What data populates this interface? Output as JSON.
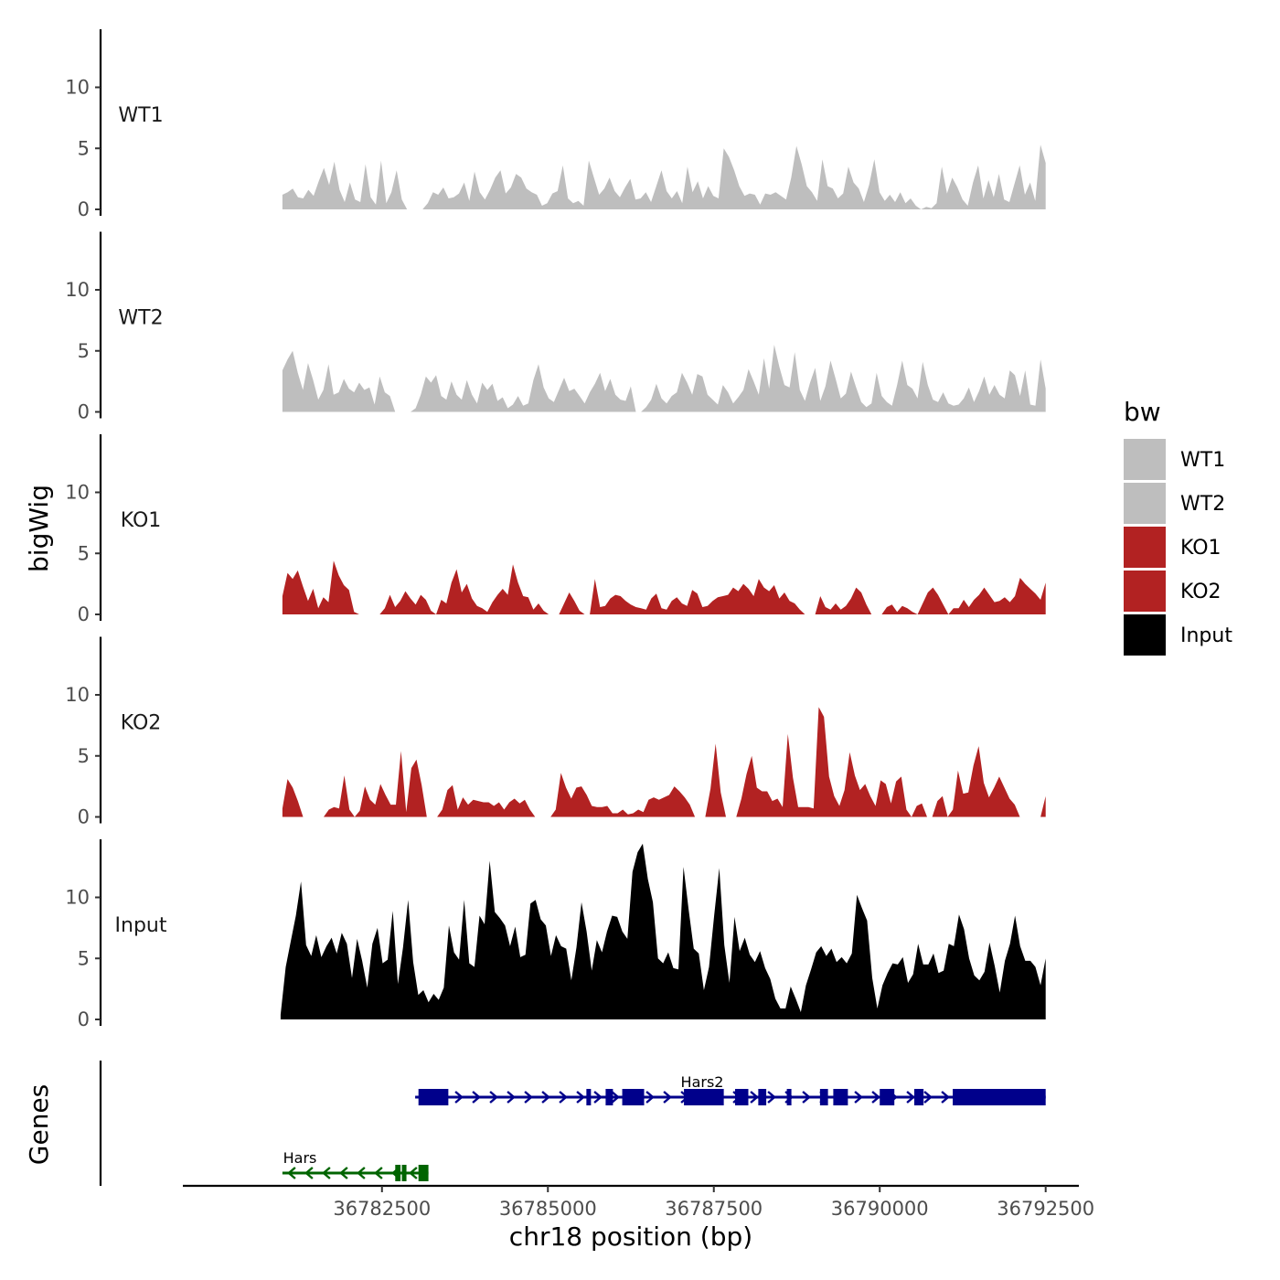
{
  "chart_data": {
    "type": "area",
    "ylabel": "bigWig",
    "xlabel": "chr18 position (bp)",
    "genes_label": "Genes",
    "ylim": [
      0,
      15
    ],
    "yticks": [
      0,
      5,
      10
    ],
    "xlim": [
      36779500,
      36793000
    ],
    "xticks": [
      36782500,
      36785000,
      36787500,
      36790000,
      36792500
    ],
    "x_start": 36781000,
    "x_end": 36792500,
    "legend": {
      "title": "bw",
      "entries": [
        {
          "label": "WT1",
          "color": "#bebebe"
        },
        {
          "label": "WT2",
          "color": "#bebebe"
        },
        {
          "label": "KO1",
          "color": "#b22222"
        },
        {
          "label": "KO2",
          "color": "#b22222"
        },
        {
          "label": "Input",
          "color": "#000000"
        }
      ]
    },
    "tracks": [
      {
        "name": "WT1",
        "color": "#bebebe",
        "values": [
          1.2,
          1.4,
          1.7,
          1.0,
          0.9,
          1.6,
          1.1,
          2.3,
          3.4,
          2.0,
          3.9,
          1.6,
          0.6,
          2.2,
          0.8,
          0.6,
          3.7,
          1.0,
          0.4,
          4.0,
          0.5,
          1.4,
          3.2,
          0.8,
          0,
          0,
          0,
          0,
          0.5,
          1.4,
          1.2,
          1.8,
          0.9,
          1.0,
          1.3,
          2.2,
          0.7,
          3.1,
          1.4,
          0.8,
          1.6,
          2.6,
          3.2,
          1.3,
          1.8,
          2.9,
          2.6,
          1.7,
          1.4,
          1.2,
          0.3,
          0.5,
          1.3,
          1.5,
          3.6,
          0.9,
          0.5,
          0.7,
          0.3,
          4.0,
          2.6,
          1.2,
          1.7,
          2.6,
          1.5,
          1.0,
          1.8,
          2.5,
          0.8,
          0.9,
          1.4,
          0.6,
          1.9,
          3.2,
          1.5,
          0.9,
          1.5,
          0.5,
          3.5,
          1.4,
          2.3,
          0.9,
          1.9,
          1.1,
          0.9,
          5.0,
          4.3,
          3.2,
          1.9,
          1.1,
          1.3,
          1.2,
          0.4,
          1.3,
          1.2,
          1.4,
          1.1,
          0.8,
          2.6,
          5.2,
          3.7,
          1.9,
          1.4,
          0.7,
          4.1,
          1.9,
          1.7,
          0.9,
          1.3,
          3.5,
          2.2,
          1.7,
          0.6,
          2.0,
          4.1,
          1.4,
          0.7,
          1.2,
          0.6,
          1.4,
          0.5,
          0.9,
          0.3,
          0,
          0.2,
          0.1,
          0.5,
          3.5,
          1.3,
          2.6,
          1.8,
          0.8,
          0.3,
          2.2,
          3.6,
          0.9,
          2.4,
          1.0,
          2.9,
          0.8,
          0.6,
          2.1,
          3.6,
          1.2,
          2.2,
          0.7,
          5.3,
          3.8
        ]
      },
      {
        "name": "WT2",
        "color": "#bebebe",
        "values": [
          3.4,
          4.3,
          5.0,
          3.2,
          1.8,
          4.0,
          2.6,
          1.0,
          1.8,
          3.9,
          1.4,
          1.6,
          2.7,
          1.9,
          1.6,
          2.4,
          1.8,
          2.0,
          0.6,
          2.9,
          1.6,
          1.3,
          0,
          0,
          0,
          0,
          0.3,
          1.4,
          2.9,
          2.4,
          3.0,
          1.3,
          1.0,
          2.5,
          1.4,
          1.0,
          2.6,
          1.4,
          0.7,
          2.4,
          1.8,
          2.3,
          0.9,
          1.2,
          0.3,
          0.6,
          1.3,
          0.5,
          0.7,
          2.6,
          3.9,
          2.0,
          1.1,
          0.8,
          1.8,
          2.8,
          1.7,
          1.9,
          1.3,
          0.7,
          1.6,
          2.3,
          3.2,
          1.7,
          2.7,
          1.4,
          1.0,
          0.9,
          2.1,
          0,
          0,
          0.4,
          1.0,
          2.3,
          1.1,
          0.7,
          1.3,
          1.6,
          3.2,
          2.4,
          1.4,
          3.1,
          2.9,
          1.4,
          1.0,
          0.6,
          2.2,
          1.6,
          0.7,
          1.2,
          1.8,
          3.5,
          2.5,
          1.4,
          4.4,
          1.9,
          5.5,
          3.7,
          2.2,
          2.0,
          4.9,
          1.8,
          0.9,
          2.4,
          3.6,
          0.9,
          2.1,
          4.2,
          2.7,
          1.1,
          1.5,
          3.3,
          2.0,
          0.8,
          0.4,
          0.7,
          3.2,
          1.3,
          0.8,
          0.5,
          2.2,
          4.2,
          2.2,
          1.9,
          1.1,
          4.1,
          2.2,
          1.0,
          0.8,
          1.6,
          0.7,
          0.5,
          0.6,
          1.1,
          2.0,
          0.8,
          1.7,
          2.9,
          1.4,
          2.2,
          1.4,
          1.1,
          3.4,
          3.0,
          1.3,
          3.4,
          0.6,
          0.5,
          4.3,
          1.9
        ]
      },
      {
        "name": "KO1",
        "color": "#b22222",
        "values": [
          1.5,
          3.4,
          2.9,
          3.6,
          2.3,
          1.1,
          2.1,
          0.5,
          1.4,
          1.0,
          4.4,
          3.2,
          2.4,
          2.0,
          0.2,
          0,
          0,
          0,
          0,
          0,
          0.5,
          1.6,
          0.6,
          1.1,
          1.9,
          1.3,
          0.8,
          1.6,
          1.2,
          0.3,
          0,
          1.2,
          0.9,
          2.6,
          3.7,
          1.8,
          2.5,
          1.3,
          0.7,
          0.5,
          0.2,
          1.0,
          1.6,
          2.1,
          1.6,
          4.1,
          2.6,
          1.5,
          1.4,
          0.4,
          0.9,
          0.3,
          0,
          0,
          0,
          0.9,
          1.8,
          1.1,
          0.3,
          0,
          0,
          2.9,
          0.6,
          0.7,
          1.3,
          1.6,
          1.5,
          1.1,
          0.8,
          0.6,
          0.5,
          0.4,
          1.3,
          1.7,
          0.5,
          0.4,
          1.1,
          1.4,
          0.9,
          0.7,
          2.0,
          1.7,
          0.6,
          0.7,
          1.1,
          1.4,
          1.5,
          1.6,
          2.2,
          1.9,
          2.5,
          2.1,
          1.5,
          2.9,
          2.2,
          1.9,
          2.4,
          1.3,
          1.8,
          1.1,
          0.9,
          0.4,
          0,
          0,
          0,
          1.5,
          0.6,
          0.4,
          0.9,
          0.4,
          0.7,
          1.3,
          2.2,
          1.8,
          0.8,
          0,
          0,
          0,
          0.6,
          0.8,
          0.2,
          0.7,
          0.5,
          0.2,
          0,
          0.9,
          1.8,
          2.2,
          1.6,
          0.8,
          0,
          0.5,
          0.5,
          1.2,
          0.6,
          1.2,
          1.6,
          2.2,
          1.6,
          1.0,
          1.1,
          1.4,
          1.0,
          1.5,
          3.0,
          2.5,
          2.1,
          1.7,
          1.2,
          2.6
        ]
      },
      {
        "name": "KO2",
        "color": "#b22222",
        "values": [
          0.7,
          3.1,
          2.4,
          1.3,
          0,
          0,
          0,
          0,
          0,
          0.6,
          0.8,
          0.7,
          3.4,
          0.6,
          0,
          0.5,
          2.5,
          1.4,
          1.0,
          2.7,
          1.8,
          1.0,
          1.0,
          5.4,
          0.4,
          4.0,
          4.7,
          2.6,
          0,
          0,
          0,
          0.6,
          2.2,
          2.6,
          0.6,
          1.6,
          1.0,
          1.4,
          1.3,
          1.2,
          1.2,
          0.9,
          1.2,
          0.6,
          1.2,
          1.5,
          1.1,
          1.4,
          0.6,
          0,
          0,
          0,
          0,
          0.6,
          3.6,
          2.4,
          1.5,
          2.4,
          2.5,
          1.8,
          0.9,
          0.8,
          0.8,
          0.9,
          0.3,
          0.3,
          0.6,
          0.2,
          0.3,
          0.6,
          0.4,
          1.4,
          1.6,
          1.4,
          1.6,
          1.8,
          2.5,
          2.1,
          1.6,
          1.0,
          0,
          0,
          0,
          2.3,
          6.0,
          2.0,
          0,
          0,
          0,
          1.5,
          3.5,
          5.0,
          2.4,
          2.1,
          2.1,
          1.3,
          1.5,
          0.8,
          6.8,
          3.2,
          0.8,
          0.8,
          0.8,
          0.7,
          9.0,
          8.2,
          3.3,
          1.7,
          0.9,
          2.2,
          5.3,
          3.4,
          2.2,
          2.7,
          1.7,
          0.9,
          3.0,
          2.7,
          1.1,
          2.9,
          3.3,
          0.6,
          0,
          0.9,
          1.1,
          0,
          0,
          1.3,
          1.7,
          0,
          0.6,
          3.8,
          1.9,
          2.0,
          4.2,
          5.8,
          2.8,
          1.6,
          2.4,
          3.3,
          2.4,
          1.5,
          1.0,
          0,
          0,
          0,
          0,
          0,
          1.7
        ]
      },
      {
        "name": "Input",
        "color": "#000000",
        "values": [
          0.4,
          4.3,
          6.4,
          8.5,
          11.3,
          6.1,
          5.2,
          6.9,
          5.1,
          6.0,
          6.7,
          5.4,
          7.1,
          6.2,
          3.4,
          6.6,
          4.8,
          2.6,
          6.2,
          7.5,
          4.6,
          4.9,
          8.9,
          2.9,
          5.9,
          9.8,
          4.7,
          2.0,
          2.4,
          1.4,
          2.1,
          1.6,
          2.6,
          7.7,
          5.5,
          4.9,
          9.8,
          4.6,
          4.3,
          8.5,
          7.8,
          13.0,
          8.8,
          8.3,
          7.7,
          6.0,
          7.6,
          5.1,
          5.3,
          9.5,
          9.8,
          8.2,
          7.7,
          5.2,
          6.9,
          6.0,
          5.8,
          3.2,
          5.9,
          9.6,
          7.2,
          4.0,
          6.5,
          5.5,
          7.2,
          8.5,
          8.4,
          7.2,
          6.6,
          12.1,
          13.7,
          14.4,
          11.5,
          9.6,
          5.0,
          4.6,
          5.5,
          4.2,
          4.1,
          12.5,
          9.0,
          5.8,
          5.4,
          2.4,
          4.3,
          8.5,
          12.4,
          6.1,
          3.0,
          8.4,
          5.6,
          6.7,
          5.3,
          4.7,
          5.6,
          4.2,
          3.3,
          1.7,
          0.9,
          0.9,
          2.7,
          1.7,
          0.6,
          2.8,
          4.1,
          5.5,
          6.0,
          5.2,
          5.8,
          4.7,
          5.1,
          4.6,
          5.4,
          10.2,
          9.1,
          8.1,
          3.4,
          0.9,
          2.8,
          3.8,
          4.6,
          4.5,
          5.1,
          3.0,
          3.7,
          6.2,
          4.5,
          4.5,
          5.4,
          3.8,
          4.0,
          6.2,
          6.0,
          8.6,
          7.4,
          5.0,
          3.6,
          3.2,
          3.9,
          6.3,
          4.4,
          2.2,
          4.8,
          6.2,
          8.5,
          6.0,
          4.8,
          4.8,
          4.3,
          2.8,
          5.0
        ]
      }
    ],
    "genes": [
      {
        "name": "Hars2",
        "color": "#00008b",
        "strand": "+",
        "start": 36783000,
        "end": 36792500,
        "exons": [
          [
            36783050,
            36783500
          ],
          [
            36785580,
            36785640
          ],
          [
            36785870,
            36785980
          ],
          [
            36786120,
            36786450
          ],
          [
            36787050,
            36787650
          ],
          [
            36787820,
            36788020
          ],
          [
            36788170,
            36788290
          ],
          [
            36788600,
            36788660
          ],
          [
            36789100,
            36789220
          ],
          [
            36789300,
            36789520
          ],
          [
            36790000,
            36790220
          ],
          [
            36790520,
            36790660
          ],
          [
            36791100,
            36792500
          ]
        ]
      },
      {
        "name": "Hars",
        "color": "#006400",
        "strand": "-",
        "start": 36781000,
        "end": 36783200,
        "exons": [
          [
            36782700,
            36782780
          ],
          [
            36782800,
            36782850
          ],
          [
            36783050,
            36783200
          ]
        ]
      }
    ]
  }
}
